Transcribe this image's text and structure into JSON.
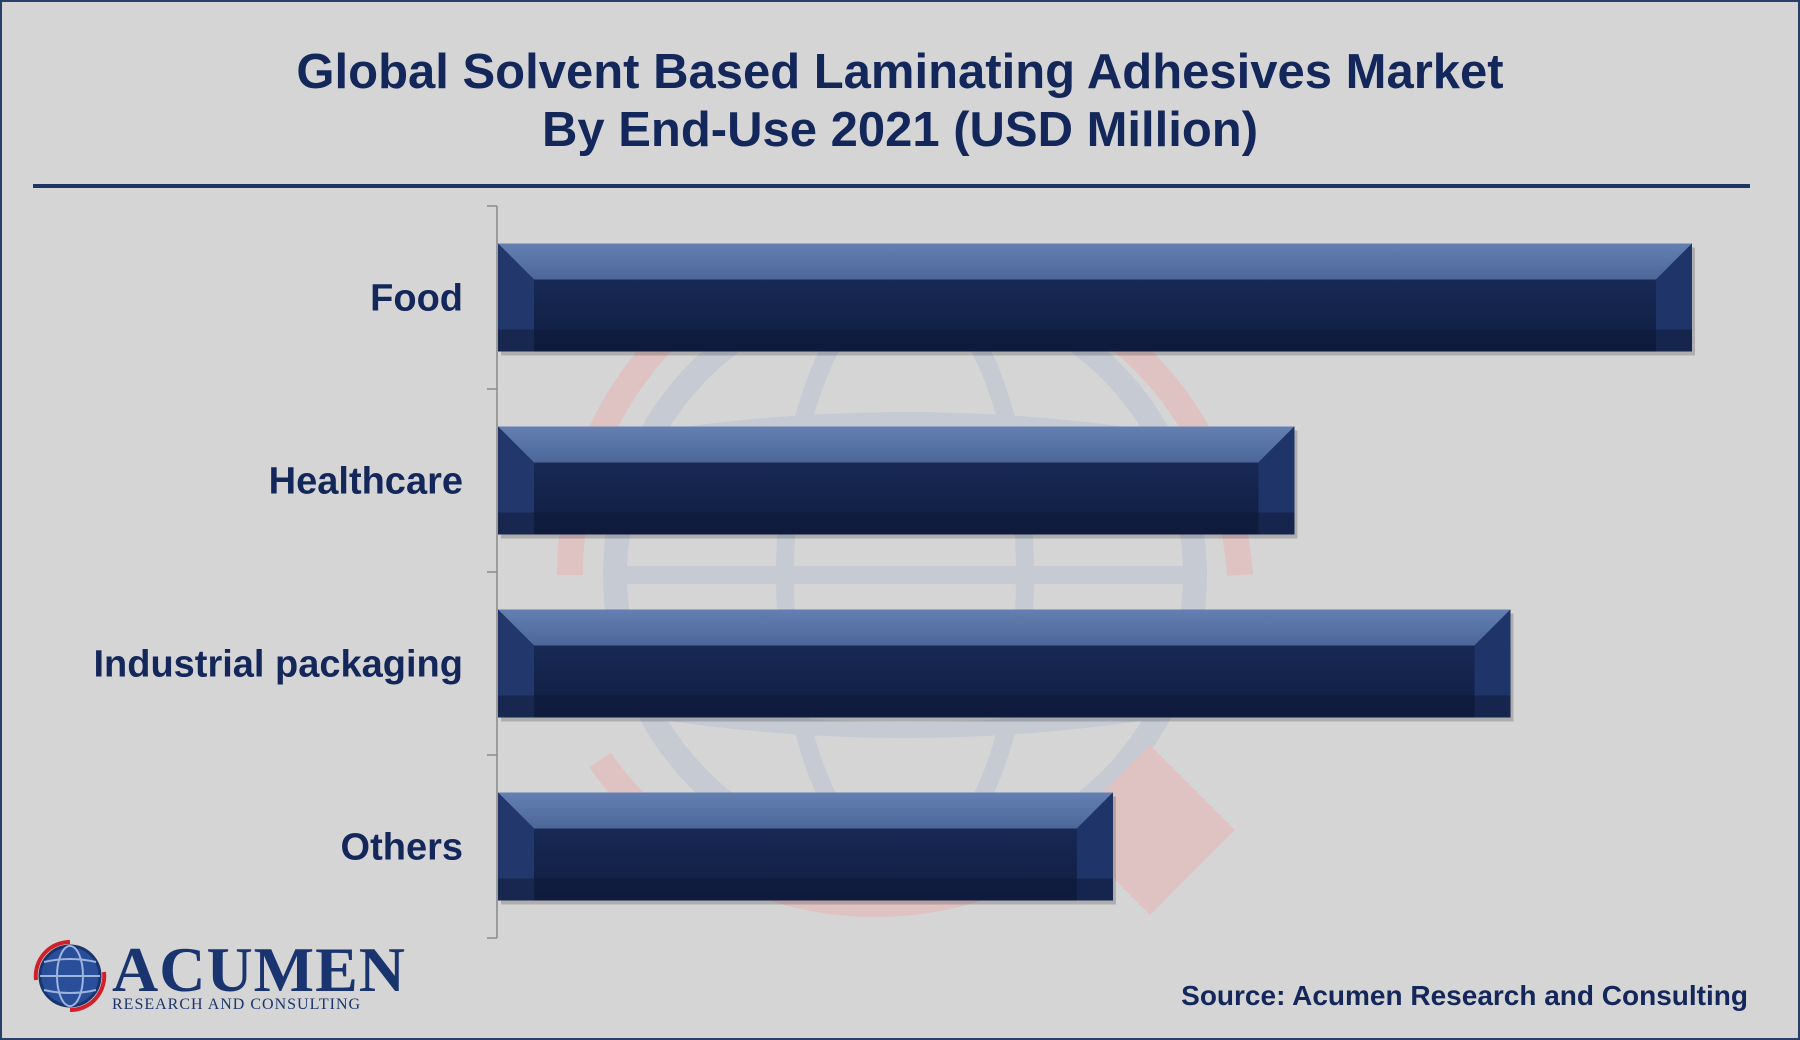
{
  "title_line1": "Global Solvent Based Laminating Adhesives Market",
  "title_line2": "By End-Use 2021 (USD Million)",
  "source": "Source: Acumen Research and Consulting",
  "logo": {
    "wordmark": "ACUMEN",
    "tagline": "RESEARCH AND CONSULTING"
  },
  "colors": {
    "bar_dark": "#15254f",
    "bar_light": "#5a77a8",
    "text": "#14275a",
    "watermark_red": "#e8b5b5",
    "watermark_blue": "#b9c2d3"
  },
  "chart_data": {
    "type": "bar",
    "orientation": "horizontal",
    "title": "Global Solvent Based Laminating Adhesives Market By End-Use 2021 (USD Million)",
    "categories": [
      "Food",
      "Healthcare",
      "Industrial packaging",
      "Others"
    ],
    "values": [
      100,
      66.7,
      84.8,
      51.5
    ],
    "xlim": [
      0,
      100
    ],
    "xlabel": "",
    "ylabel": "",
    "grid": false,
    "legend": "none"
  }
}
